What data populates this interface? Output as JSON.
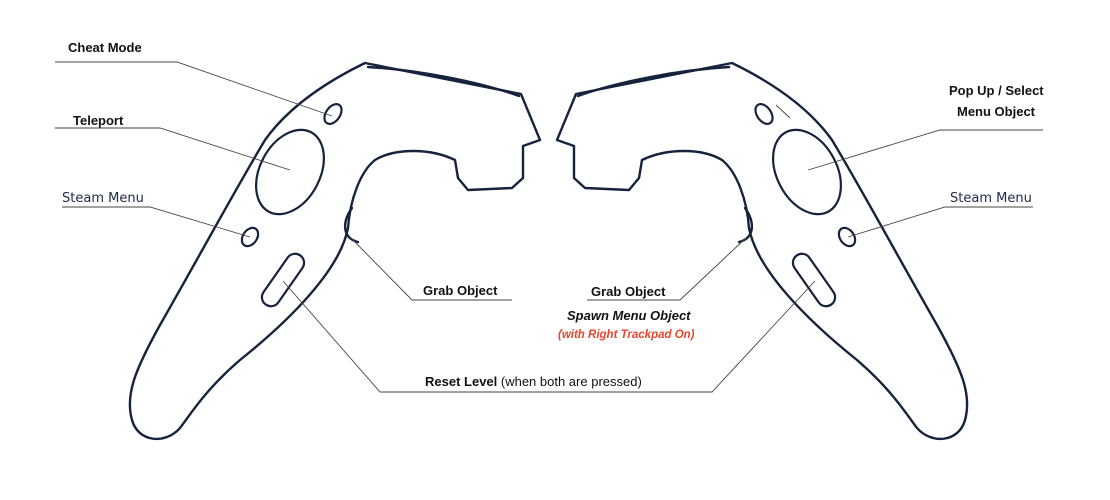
{
  "labels": {
    "cheat_mode": "Cheat Mode",
    "teleport": "Teleport",
    "steam_menu_left": "Steam Menu",
    "grab_object_left": "Grab Object",
    "popup_select_line1": "Pop Up / Select",
    "popup_select_line2": "Menu Object",
    "steam_menu_right": "Steam Menu",
    "grab_object_right": "Grab Object",
    "spawn_menu_object": "Spawn Menu Object",
    "with_right_trackpad": "(with Right Trackpad On)",
    "reset_level_bold": "Reset Level",
    "reset_level_note": " (when both are pressed)"
  },
  "colors": {
    "outline": "#16233d",
    "accent_red": "#e8452c",
    "leader": "#444444"
  }
}
